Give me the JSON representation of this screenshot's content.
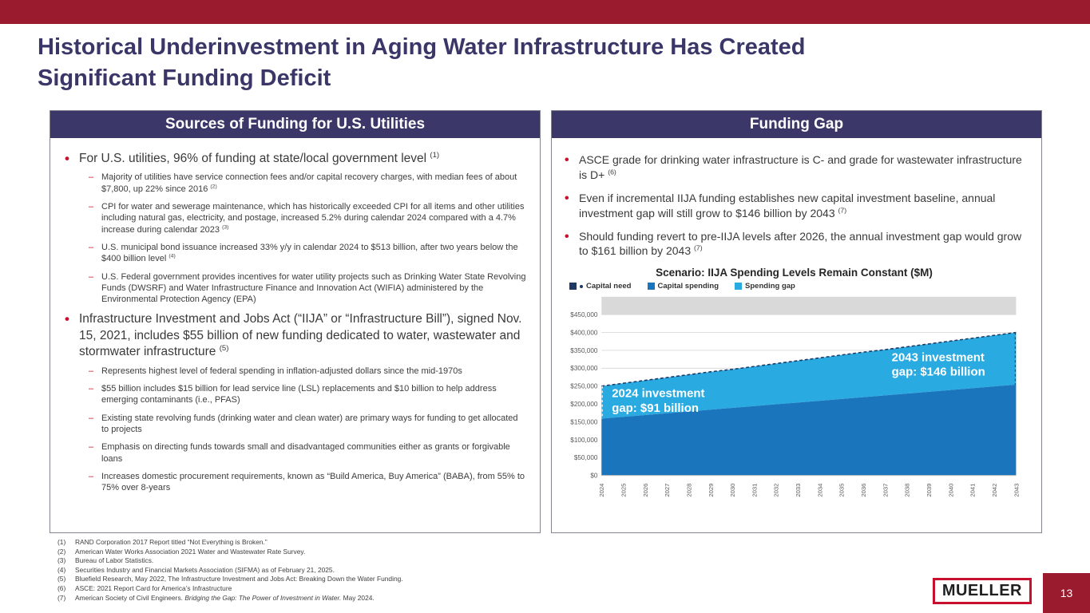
{
  "slide": {
    "title": "Historical Underinvestment in Aging Water Infrastructure Has Created Significant Funding Deficit"
  },
  "footer": {
    "logo_text": "MUELLER",
    "page_number": "13"
  },
  "colors": {
    "accent_red": "#9A1B2E",
    "bullet_red": "#C8102E",
    "header_navy": "#3B3869",
    "title_navy": "#3A3768",
    "capital_need": "#1F3864",
    "capital_spending": "#1B75BC",
    "spending_gap": "#29ABE2"
  },
  "left_panel": {
    "header": "Sources of Funding for U.S. Utilities",
    "bullets": [
      {
        "text": "For U.S. utilities, 96% of funding at state/local government level",
        "ref": "(1)",
        "subs": [
          {
            "text": "Majority of utilities have service connection fees and/or capital recovery charges, with median fees of about $7,800, up 22% since 2016",
            "ref": "(2)"
          },
          {
            "text": "CPI for water and sewerage maintenance, which has historically exceeded CPI for all items and other utilities including natural gas, electricity, and postage, increased 5.2% during calendar 2024 compared with a 4.7% increase during calendar 2023",
            "ref": "(3)"
          },
          {
            "text": "U.S. municipal bond issuance increased 33% y/y in calendar 2024 to $513 billion, after two years below the $400 billion level",
            "ref": "(4)"
          },
          {
            "text": "U.S. Federal government provides incentives for water utility projects such as Drinking Water State Revolving Funds (DWSRF) and Water Infrastructure Finance and Innovation Act (WIFIA) administered by the Environmental Protection Agency (EPA)",
            "ref": ""
          }
        ]
      },
      {
        "text": "Infrastructure Investment and Jobs Act (“IIJA” or “Infrastructure Bill”), signed Nov. 15, 2021, includes $55 billion of new funding dedicated to water, wastewater and stormwater infrastructure",
        "ref": "(5)",
        "subs": [
          {
            "text": "Represents highest level of federal spending in inflation-adjusted dollars since the mid-1970s",
            "ref": ""
          },
          {
            "text": "$55 billion includes $15 billion for lead service line (LSL) replacements and $10 billion to help address emerging contaminants (i.e., PFAS)",
            "ref": ""
          },
          {
            "text": "Existing state revolving funds (drinking water and clean water) are primary ways for funding to get allocated to projects",
            "ref": ""
          },
          {
            "text": "Emphasis on directing funds towards small and disadvantaged communities either as grants or forgivable loans",
            "ref": ""
          },
          {
            "text": "Increases domestic procurement requirements, known as “Build America, Buy America” (BABA), from 55% to 75% over 8-years",
            "ref": ""
          }
        ]
      }
    ]
  },
  "right_panel": {
    "header": "Funding Gap",
    "bullets": [
      {
        "text": "ASCE grade for drinking water infrastructure is C- and grade for wastewater infrastructure is D+",
        "ref": "(6)"
      },
      {
        "text": "Even if incremental IIJA funding establishes new capital investment baseline, annual investment gap will still grow to $146 billion by 2043",
        "ref": "(7)"
      },
      {
        "text": "Should funding revert to pre-IIJA levels after 2026, the annual investment gap would grow to $161 billion by 2043",
        "ref": "(7)"
      }
    ]
  },
  "chart_data": {
    "type": "area",
    "title": "Scenario: IIJA Spending Levels Remain Constant ($M)",
    "units": "$M",
    "grid": true,
    "legend_position": "top-left",
    "x": [
      "2024",
      "2025",
      "2026",
      "2027",
      "2028",
      "2029",
      "2030",
      "2031",
      "2032",
      "2033",
      "2034",
      "2035",
      "2036",
      "2037",
      "2038",
      "2039",
      "2040",
      "2041",
      "2042",
      "2043"
    ],
    "series": [
      {
        "name": "Capital need",
        "style": "dashed-line",
        "color": "#1F3864",
        "values": [
          250000,
          258000,
          266000,
          274000,
          282000,
          290000,
          297000,
          305000,
          313000,
          321000,
          329000,
          337000,
          345000,
          352000,
          360000,
          368000,
          376000,
          384000,
          392000,
          400000
        ]
      },
      {
        "name": "Capital spending",
        "style": "area",
        "color": "#1B75BC",
        "values": [
          159000,
          164000,
          169000,
          174000,
          179000,
          184000,
          189000,
          194000,
          199000,
          204000,
          209000,
          214000,
          219000,
          224000,
          229000,
          234000,
          239000,
          244000,
          249000,
          254000
        ]
      },
      {
        "name": "Spending gap",
        "style": "area-between",
        "color": "#29ABE2",
        "note": "Region between capital need and capital spending; $91B in 2024 growing to $146B in 2043"
      }
    ],
    "ylim": [
      0,
      450000
    ],
    "y_ticks": [
      {
        "v": 0,
        "label": "$0"
      },
      {
        "v": 50000,
        "label": "$50,000"
      },
      {
        "v": 100000,
        "label": "$100,000"
      },
      {
        "v": 150000,
        "label": "$150,000"
      },
      {
        "v": 200000,
        "label": "$200,000"
      },
      {
        "v": 250000,
        "label": "$250,000"
      },
      {
        "v": 300000,
        "label": "$300,000"
      },
      {
        "v": 350000,
        "label": "$350,000"
      },
      {
        "v": 400000,
        "label": "$400,000"
      },
      {
        "v": 450000,
        "label": "$450,000"
      }
    ],
    "legend": [
      {
        "label": "Capital need",
        "color": "#1F3864",
        "dot": true
      },
      {
        "label": "Capital spending",
        "color": "#1B75BC"
      },
      {
        "label": "Spending gap",
        "color": "#29ABE2"
      }
    ],
    "annotations": [
      {
        "lines": [
          "2024 investment",
          "gap: $91 billion"
        ],
        "x_frac": 0.025
      },
      {
        "lines": [
          "2043 investment",
          "gap: $146 billion"
        ],
        "x_frac": 0.7
      }
    ]
  },
  "footnotes": [
    {
      "num": "(1)",
      "parts": [
        {
          "t": "RAND Corporation 2017 Report titled “Not Everything is Broken.”"
        }
      ]
    },
    {
      "num": "(2)",
      "parts": [
        {
          "t": "American Water Works Association 2021 Water and Wastewater Rate Survey."
        }
      ]
    },
    {
      "num": "(3)",
      "parts": [
        {
          "t": "Bureau of Labor Statistics."
        }
      ]
    },
    {
      "num": "(4)",
      "parts": [
        {
          "t": "Securities Industry and Financial Markets Association (SIFMA) as of February 21, 2025."
        }
      ]
    },
    {
      "num": "(5)",
      "parts": [
        {
          "t": "Bluefield Research, May 2022, The Infrastructure Investment and Jobs Act: Breaking Down the Water Funding."
        }
      ]
    },
    {
      "num": "(6)",
      "parts": [
        {
          "t": "ASCE: 2021 Report Card for America’s Infrastructure"
        }
      ]
    },
    {
      "num": "(7)",
      "parts": [
        {
          "t": "American Society of Civil Engineers. "
        },
        {
          "t": "Bridging the Gap: The Power of Investment in Water.",
          "i": true
        },
        {
          "t": " May 2024."
        }
      ]
    }
  ]
}
